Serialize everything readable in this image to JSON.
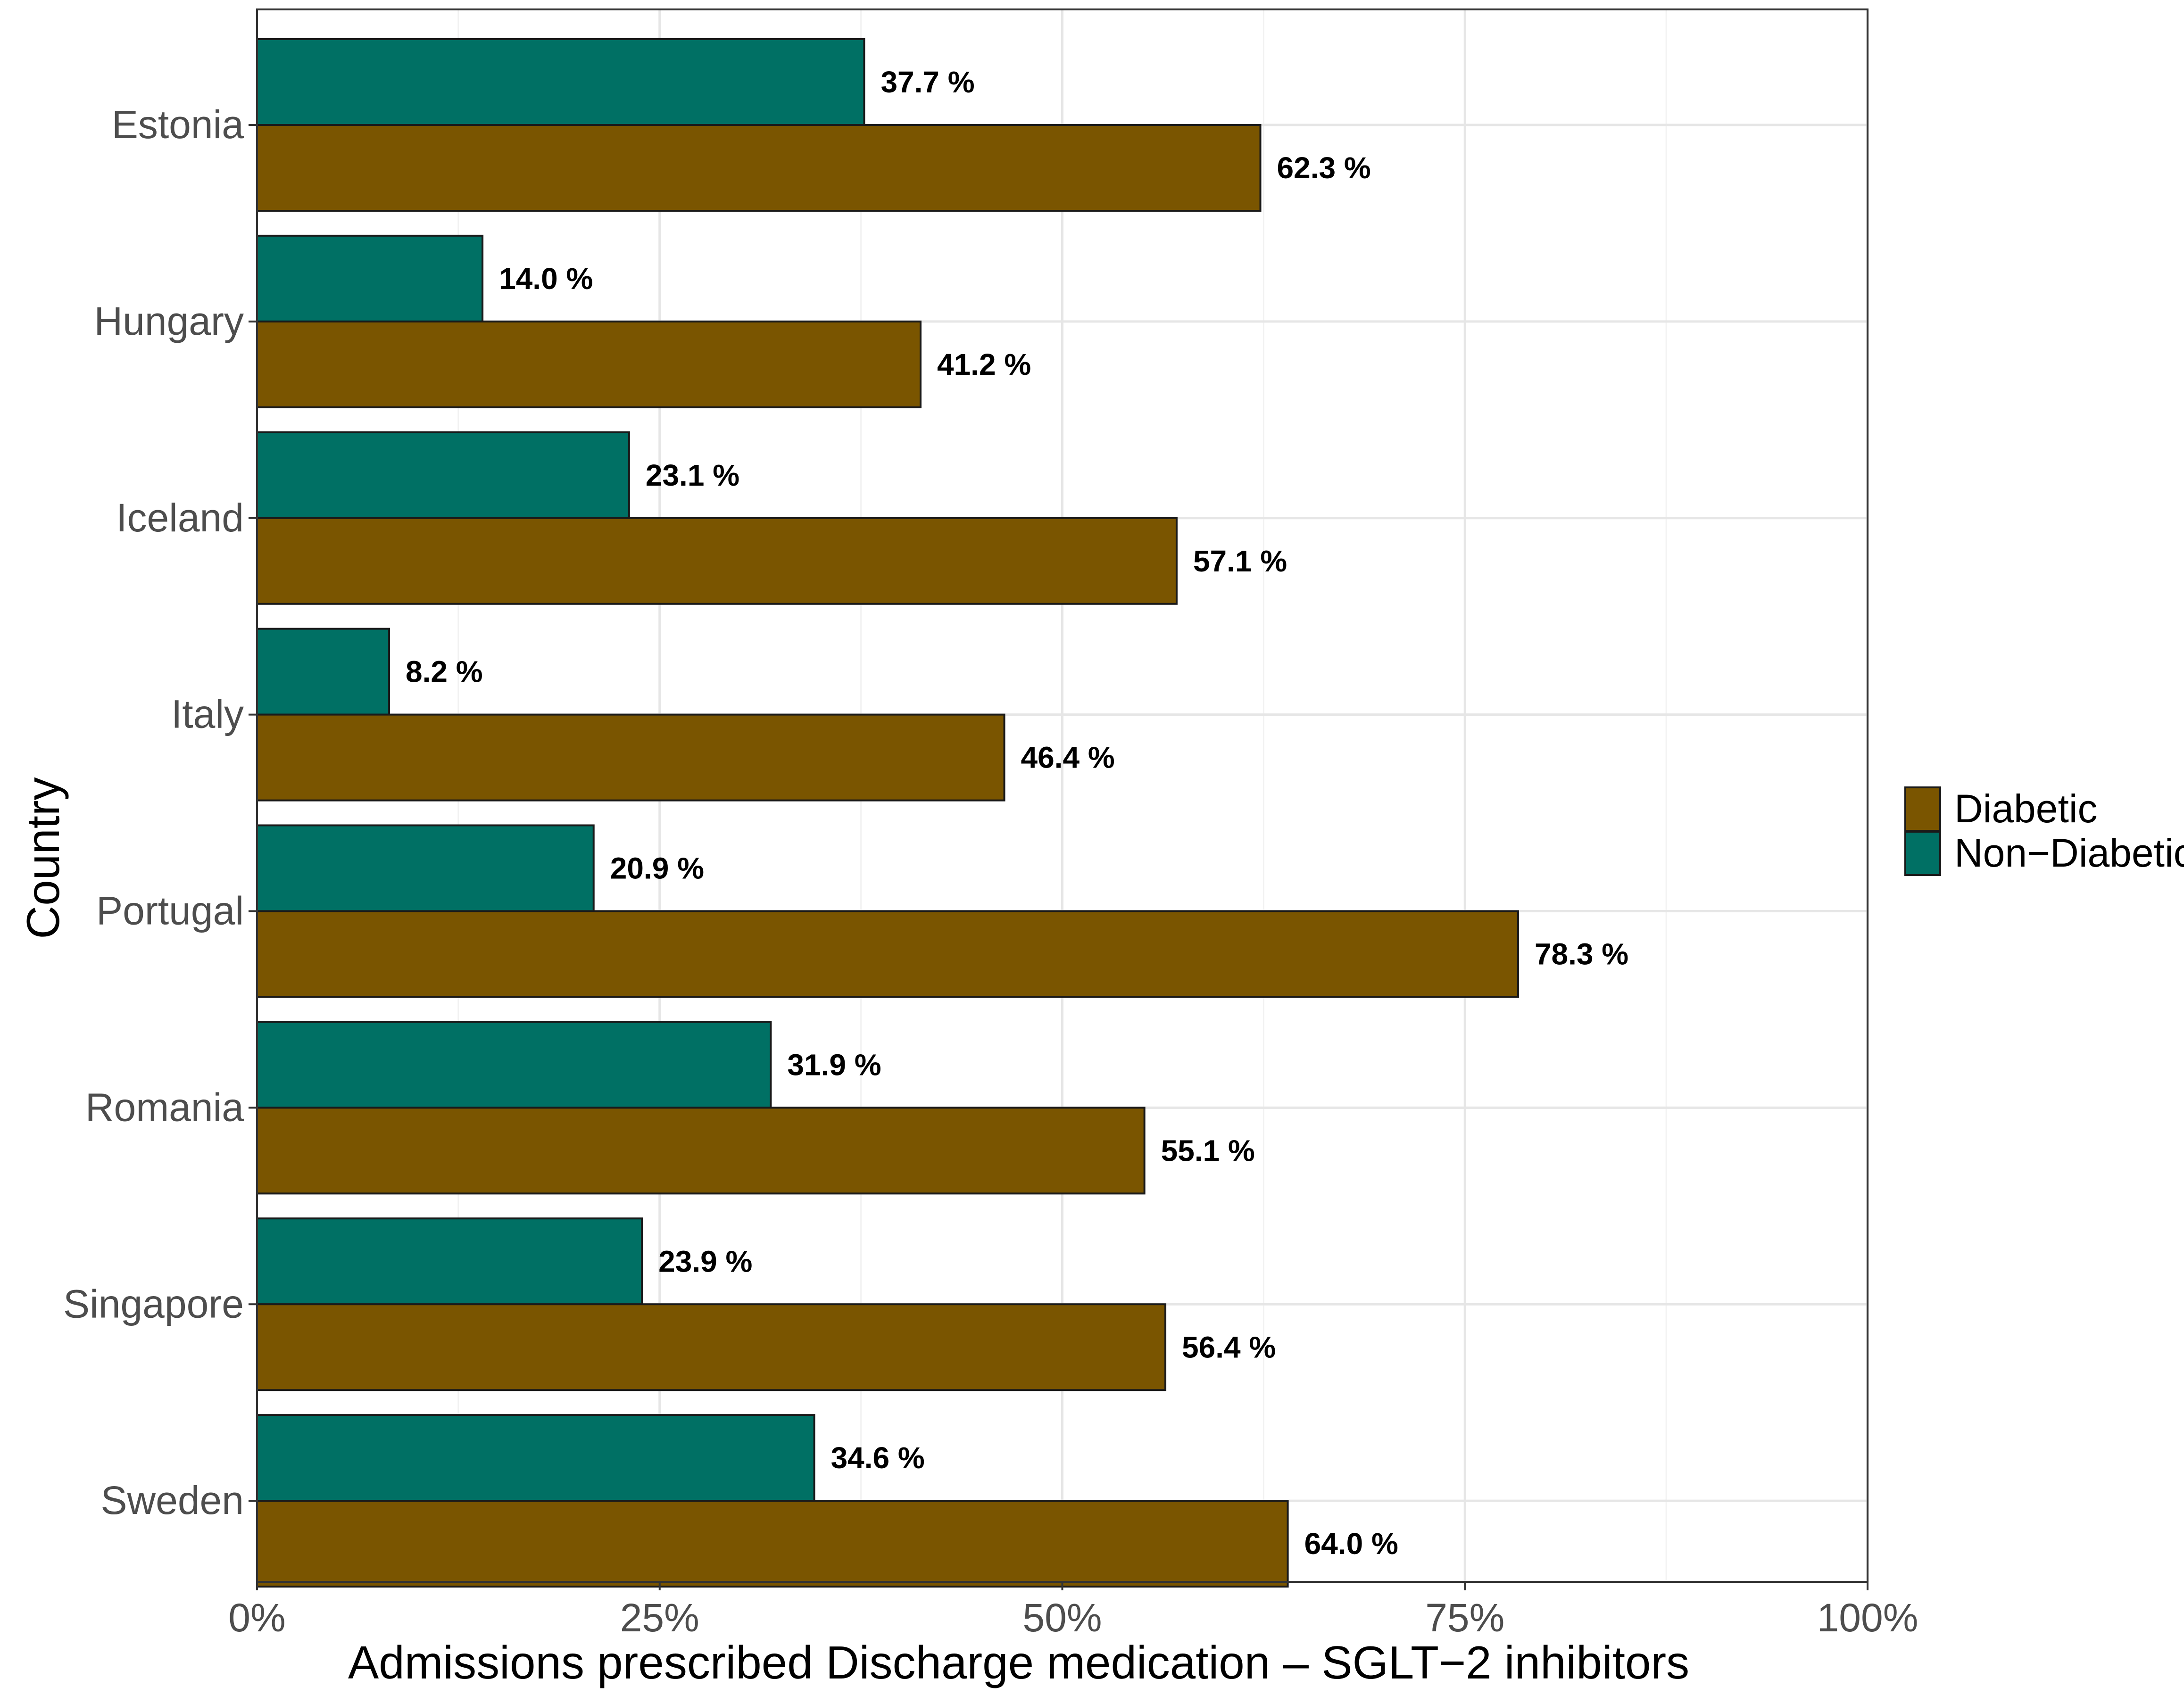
{
  "chart_data": {
    "type": "bar",
    "orientation": "horizontal",
    "categories": [
      "Estonia",
      "Hungary",
      "Iceland",
      "Italy",
      "Portugal",
      "Romania",
      "Singapore",
      "Sweden"
    ],
    "series": [
      {
        "name": "Non-Diabetic",
        "color": "#007064",
        "values": [
          37.7,
          14.0,
          23.1,
          8.2,
          20.9,
          31.9,
          23.9,
          34.6
        ],
        "labels": [
          "37.7 %",
          "14.0 %",
          "23.1 %",
          "8.2 %",
          "20.9 %",
          "31.9 %",
          "23.9 %",
          "34.6 %"
        ]
      },
      {
        "name": "Diabetic",
        "color": "#7a5500",
        "values": [
          62.3,
          41.2,
          57.1,
          46.4,
          78.3,
          55.1,
          56.4,
          64.0
        ],
        "labels": [
          "62.3 %",
          "41.2 %",
          "57.1 %",
          "46.4 %",
          "78.3 %",
          "55.1 %",
          "56.4 %",
          "64.0 %"
        ]
      }
    ],
    "xlabel": "Admissions prescribed Discharge medication – SGLT−2 inhibitors",
    "ylabel": "Country",
    "xlim": [
      0,
      100
    ],
    "xticks": [
      0,
      25,
      50,
      75,
      100
    ],
    "xtick_labels": [
      "0%",
      "25%",
      "50%",
      "75%",
      "100%"
    ],
    "grid": true,
    "legend": {
      "position": "right",
      "entries": [
        {
          "name": "Diabetic",
          "color": "#7a5500"
        },
        {
          "name": "Non−Diabetic",
          "color": "#007064"
        }
      ]
    }
  }
}
